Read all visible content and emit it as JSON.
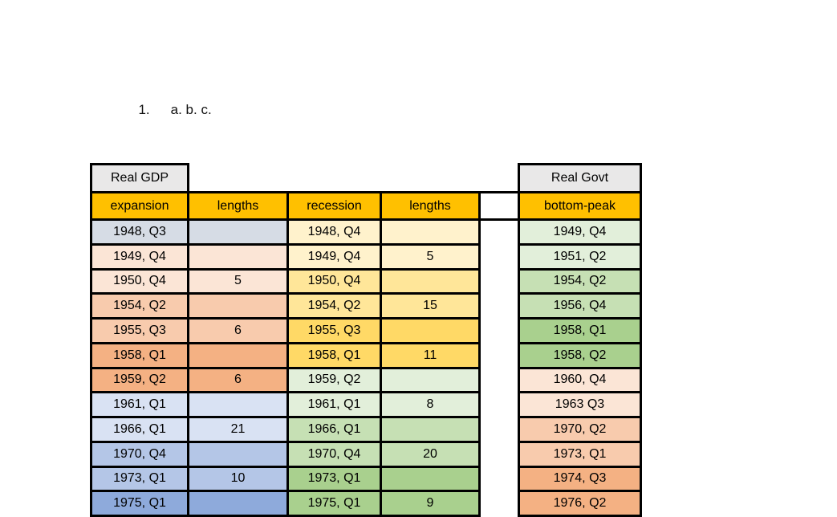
{
  "page": {
    "list_number": "1.",
    "list_items": "a. b. c."
  },
  "table": {
    "left_title": "Real GDP",
    "right_title": "Real Govt",
    "columns": [
      "expansion",
      "lengths",
      "recession",
      "lengths",
      "bottom-peak"
    ],
    "colors": {
      "header_bg": "#ffc000",
      "title_bg": "#e9e8e8",
      "border": "#000000",
      "page_bg": "#ffffff"
    },
    "rows": [
      {
        "expansion": "1948, Q3",
        "exp_len": "",
        "recession": "1948, Q4",
        "rec_len": "",
        "bottom_peak": "1949, Q4",
        "exp_color": "#d6dce5",
        "rec_color": "#fff2cc",
        "bp_color": "#e2efda"
      },
      {
        "expansion": "1949, Q4",
        "exp_len": "",
        "recession": "1949, Q4",
        "rec_len": "5",
        "bottom_peak": "1951, Q2",
        "exp_color": "#fbe5d6",
        "rec_color": "#fff2cc",
        "bp_color": "#e2efda"
      },
      {
        "expansion": "1950, Q4",
        "exp_len": "5",
        "recession": "1950, Q4",
        "rec_len": "",
        "bottom_peak": "1954, Q2",
        "exp_color": "#fbe5d6",
        "rec_color": "#ffe699",
        "bp_color": "#c6e0b4"
      },
      {
        "expansion": "1954, Q2",
        "exp_len": "",
        "recession": "1954, Q2",
        "rec_len": "15",
        "bottom_peak": "1956, Q4",
        "exp_color": "#f8cbad",
        "rec_color": "#ffe699",
        "bp_color": "#c6e0b4"
      },
      {
        "expansion": "1955, Q3",
        "exp_len": "6",
        "recession": "1955, Q3",
        "rec_len": "",
        "bottom_peak": "1958, Q1",
        "exp_color": "#f8cbad",
        "rec_color": "#ffd966",
        "bp_color": "#a9d08e"
      },
      {
        "expansion": "1958, Q1",
        "exp_len": "",
        "recession": "1958, Q1",
        "rec_len": "11",
        "bottom_peak": "1958, Q2",
        "exp_color": "#f4b183",
        "rec_color": "#ffd966",
        "bp_color": "#a9d08e"
      },
      {
        "expansion": "1959, Q2",
        "exp_len": "6",
        "recession": "1959, Q2",
        "rec_len": "",
        "bottom_peak": "1960, Q4",
        "exp_color": "#f4b183",
        "rec_color": "#e2efda",
        "bp_color": "#fbe5d6"
      },
      {
        "expansion": "1961, Q1",
        "exp_len": "",
        "recession": "1961, Q1",
        "rec_len": "8",
        "bottom_peak": "1963 Q3",
        "exp_color": "#d9e2f3",
        "rec_color": "#e2efda",
        "bp_color": "#fbe5d6"
      },
      {
        "expansion": "1966, Q1",
        "exp_len": "21",
        "recession": "1966, Q1",
        "rec_len": "",
        "bottom_peak": "1970, Q2",
        "exp_color": "#d9e2f3",
        "rec_color": "#c6e0b4",
        "bp_color": "#f8cbad"
      },
      {
        "expansion": "1970, Q4",
        "exp_len": "",
        "recession": "1970, Q4",
        "rec_len": "20",
        "bottom_peak": "1973, Q1",
        "exp_color": "#b4c6e7",
        "rec_color": "#c6e0b4",
        "bp_color": "#f8cbad"
      },
      {
        "expansion": "1973, Q1",
        "exp_len": "10",
        "recession": "1973, Q1",
        "rec_len": "",
        "bottom_peak": "1974, Q3",
        "exp_color": "#b4c6e7",
        "rec_color": "#a9d08e",
        "bp_color": "#f4b183"
      },
      {
        "expansion": "1975, Q1",
        "exp_len": "",
        "recession": "1975, Q1",
        "rec_len": "9",
        "bottom_peak": "1976, Q2",
        "exp_color": "#8eaadb",
        "rec_color": "#a9d08e",
        "bp_color": "#f4b183"
      }
    ]
  }
}
